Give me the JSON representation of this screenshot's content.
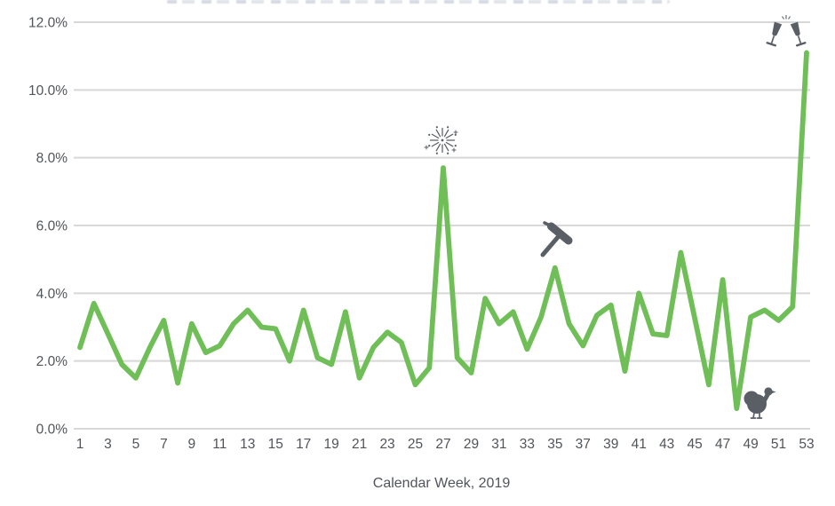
{
  "chart_data": {
    "type": "line",
    "x": [
      1,
      2,
      3,
      4,
      5,
      6,
      7,
      8,
      9,
      10,
      11,
      12,
      13,
      14,
      15,
      16,
      17,
      18,
      19,
      20,
      21,
      22,
      23,
      24,
      25,
      26,
      27,
      28,
      29,
      30,
      31,
      32,
      33,
      34,
      35,
      36,
      37,
      38,
      39,
      40,
      41,
      42,
      43,
      44,
      45,
      46,
      47,
      48,
      49,
      50,
      51,
      52,
      53
    ],
    "values": [
      2.4,
      3.7,
      2.8,
      1.9,
      1.5,
      2.4,
      3.2,
      1.35,
      3.1,
      2.25,
      2.45,
      3.1,
      3.5,
      3.0,
      2.95,
      2.0,
      3.5,
      2.1,
      1.9,
      3.45,
      1.5,
      2.4,
      2.85,
      2.55,
      1.3,
      1.8,
      7.7,
      2.1,
      1.65,
      3.85,
      3.1,
      3.45,
      2.35,
      3.3,
      4.75,
      3.1,
      2.45,
      3.35,
      3.65,
      1.7,
      4.0,
      2.8,
      2.75,
      5.2,
      3.25,
      1.3,
      4.4,
      0.6,
      3.3,
      3.5,
      3.2,
      3.6,
      11.1
    ],
    "xlabel": "Calendar Week, 2019",
    "ylabel": "",
    "ylim": [
      0,
      12
    ],
    "y_ticks": [
      0,
      2,
      4,
      6,
      8,
      10,
      12
    ],
    "y_tick_labels": [
      "0.0%",
      "2.0%",
      "4.0%",
      "6.0%",
      "8.0%",
      "10.0%",
      "12.0%"
    ],
    "x_tick_labels": [
      "1",
      "3",
      "5",
      "7",
      "9",
      "11",
      "13",
      "15",
      "17",
      "19",
      "21",
      "23",
      "25",
      "27",
      "29",
      "31",
      "33",
      "35",
      "37",
      "39",
      "41",
      "43",
      "45",
      "47",
      "49",
      "51",
      "53"
    ],
    "grid": "horizontal",
    "legend": "none",
    "annotations": [
      {
        "icon": "fireworks-icon",
        "week": 27,
        "value": 7.7
      },
      {
        "icon": "hammer-icon",
        "week": 35,
        "value": 4.75
      },
      {
        "icon": "turkey-icon",
        "week": 48,
        "value": 0.6
      },
      {
        "icon": "clinking-glasses-icon",
        "week": 53,
        "value": 11.1
      }
    ],
    "colors": {
      "line": "#6FBE57",
      "grid": "#D8D8D8",
      "labels": "#515459",
      "icons": "#5A5F66"
    }
  }
}
